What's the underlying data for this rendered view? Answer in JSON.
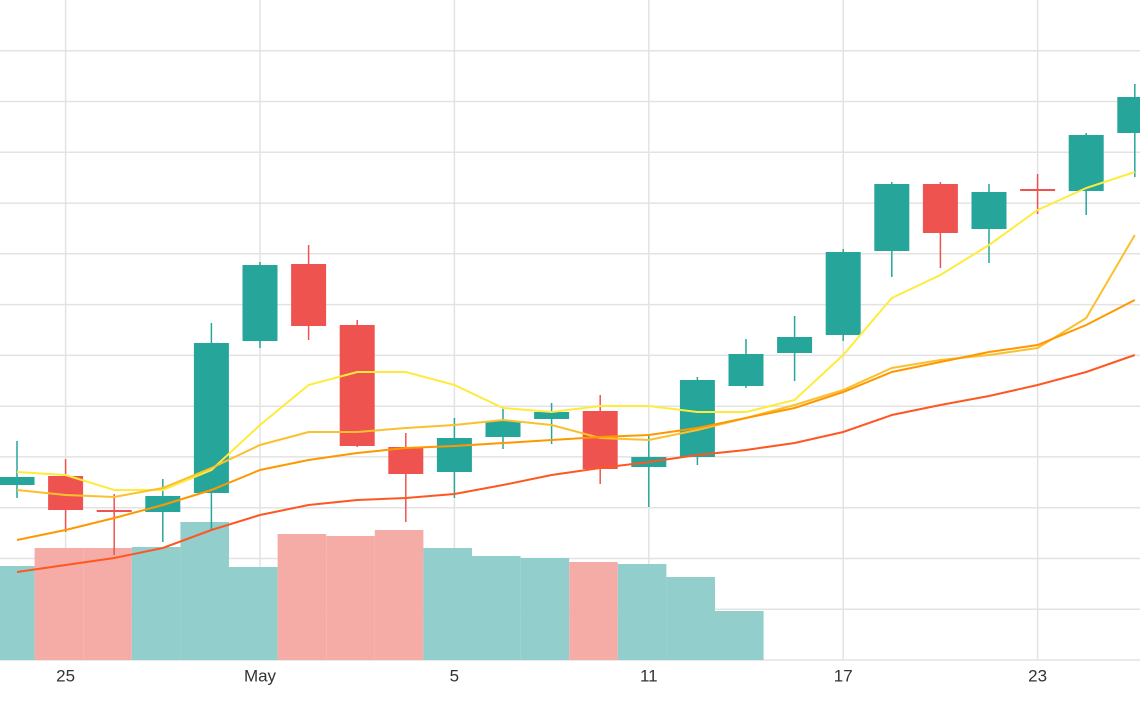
{
  "chart_data": {
    "type": "candlestick",
    "categories": [
      null,
      "25",
      null,
      null,
      null,
      "May",
      null,
      null,
      null,
      "5",
      null,
      null,
      null,
      "11",
      null,
      null,
      null,
      "17",
      null,
      null,
      null,
      "23",
      null,
      null
    ],
    "open": [
      17.5,
      18.4,
      15.0,
      14.8,
      16.7,
      31.9,
      39.6,
      33.5,
      21.3,
      18.8,
      22.3,
      24.1,
      24.9,
      19.3,
      20.3,
      27.4,
      30.7,
      32.5,
      40.9,
      47.6,
      43.1,
      47.1,
      46.9,
      52.7
    ],
    "high": [
      21.9,
      20.1,
      16.6,
      18.1,
      33.7,
      39.8,
      41.5,
      34.0,
      22.7,
      24.2,
      25.3,
      25.7,
      26.5,
      22.4,
      28.3,
      32.1,
      34.4,
      41.1,
      47.8,
      47.8,
      47.6,
      48.6,
      52.7,
      57.6
    ],
    "low": [
      16.2,
      12.8,
      10.5,
      11.8,
      12.9,
      31.2,
      32.0,
      21.3,
      13.8,
      16.2,
      21.1,
      21.6,
      17.6,
      15.3,
      19.5,
      27.2,
      27.9,
      31.9,
      38.3,
      39.2,
      39.7,
      44.6,
      44.5,
      48.3
    ],
    "close": [
      18.3,
      15.0,
      14.8,
      16.4,
      31.7,
      39.5,
      33.4,
      21.4,
      18.6,
      22.2,
      23.9,
      24.8,
      19.1,
      20.3,
      28.0,
      30.6,
      32.3,
      40.8,
      47.6,
      42.7,
      46.8,
      46.9,
      52.5,
      56.3
    ],
    "volume": [
      9.4,
      11.2,
      11.2,
      11.3,
      13.8,
      9.3,
      12.6,
      12.4,
      13.0,
      11.2,
      10.4,
      10.2,
      9.8,
      9.6,
      8.3,
      4.9,
      null,
      null,
      null,
      null,
      null,
      null,
      null,
      null
    ],
    "up_color": "#26a69a",
    "down_color": "#ef5350",
    "volume_up_color": "#92cfcc",
    "volume_down_color": "#f5aba6",
    "lines": [
      {
        "color": "#ffeb3b",
        "values": [
          18.8,
          18.5,
          17.0,
          17.0,
          19.0,
          23.5,
          27.5,
          28.8,
          28.8,
          27.5,
          25.2,
          24.8,
          25.4,
          25.4,
          24.8,
          24.8,
          26.0,
          30.5,
          36.2,
          38.5,
          41.5,
          45.0,
          47.2,
          48.8
        ]
      },
      {
        "color": "#fbc02d",
        "values": [
          17.0,
          16.5,
          16.3,
          17.2,
          19.2,
          21.5,
          22.8,
          22.8,
          23.2,
          23.5,
          24.0,
          23.5,
          22.2,
          22.0,
          23.0,
          24.2,
          25.5,
          27.0,
          29.2,
          30.0,
          30.5,
          31.2,
          34.2,
          42.5
        ]
      },
      {
        "color": "#ff9800",
        "values": [
          12.0,
          13.0,
          14.2,
          15.5,
          17.0,
          19.0,
          20.0,
          20.7,
          21.2,
          21.4,
          21.7,
          22.0,
          22.3,
          22.5,
          23.2,
          24.2,
          25.2,
          26.8,
          28.8,
          29.8,
          30.8,
          31.5,
          33.5,
          36.0
        ]
      },
      {
        "color": "#ff5722",
        "values": [
          8.8,
          9.5,
          10.2,
          11.2,
          13.0,
          14.5,
          15.5,
          16.0,
          16.2,
          16.6,
          17.5,
          18.5,
          19.2,
          19.8,
          20.5,
          21.0,
          21.7,
          22.8,
          24.5,
          25.5,
          26.4,
          27.5,
          28.8,
          30.5
        ]
      }
    ],
    "ylim": [
      0,
      66
    ],
    "yticks": [
      0,
      5.08,
      10.15,
      15.23,
      20.31,
      25.38,
      30.46,
      35.54,
      40.62,
      45.69,
      50.77,
      55.85,
      60.92
    ],
    "grid": true
  }
}
